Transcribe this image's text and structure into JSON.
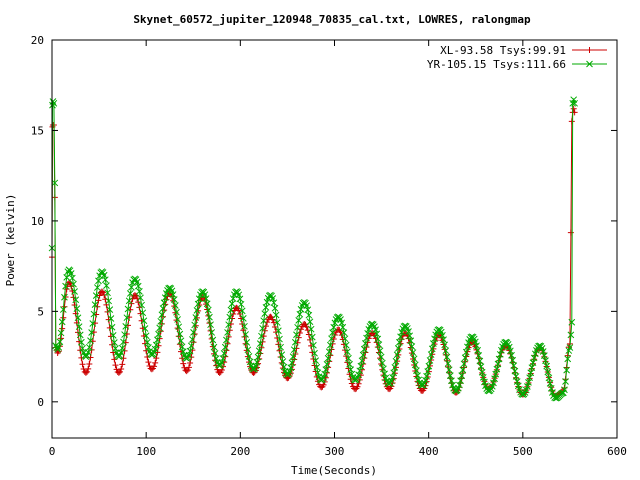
{
  "chart_data": {
    "type": "line",
    "title": "Skynet_60572_jupiter_120948_70835_cal.txt, LOWRES, ralongmap",
    "xlabel": "Time(Seconds)",
    "ylabel": "Power (kelvin)",
    "xlim": [
      0,
      600
    ],
    "ylim": [
      -2,
      20
    ],
    "xticks": [
      0,
      100,
      200,
      300,
      400,
      500,
      600
    ],
    "yticks": [
      0,
      5,
      10,
      15,
      20
    ],
    "grid": false,
    "legend_position": "top-right",
    "series": [
      {
        "name": "XL-93.58 Tsys:99.91",
        "color": "#cc0000",
        "marker": "plus",
        "points": [
          [
            0,
            8
          ],
          [
            0.5,
            15.2
          ],
          [
            1,
            15.3
          ],
          [
            2,
            15.3
          ],
          [
            3,
            11.3
          ],
          [
            4,
            3.0
          ],
          [
            6,
            2.7
          ],
          [
            18,
            6.6
          ],
          [
            36,
            1.6
          ],
          [
            53,
            6.1
          ],
          [
            71,
            1.6
          ],
          [
            88,
            5.9
          ],
          [
            106,
            1.8
          ],
          [
            125,
            6.0
          ],
          [
            143,
            1.7
          ],
          [
            160,
            5.8
          ],
          [
            178,
            1.6
          ],
          [
            196,
            5.2
          ],
          [
            214,
            1.6
          ],
          [
            232,
            4.7
          ],
          [
            250,
            1.3
          ],
          [
            268,
            4.3
          ],
          [
            286,
            0.8
          ],
          [
            304,
            4.0
          ],
          [
            322,
            0.7
          ],
          [
            340,
            3.8
          ],
          [
            358,
            0.7
          ],
          [
            375,
            3.8
          ],
          [
            393,
            0.6
          ],
          [
            411,
            3.7
          ],
          [
            429,
            0.5
          ],
          [
            446,
            3.3
          ],
          [
            464,
            0.7
          ],
          [
            482,
            3.1
          ],
          [
            500,
            0.4
          ],
          [
            518,
            3.0
          ],
          [
            535,
            0.3
          ],
          [
            543,
            0.6
          ],
          [
            550,
            3.2
          ],
          [
            552,
            15.5
          ],
          [
            553,
            16.0
          ],
          [
            554,
            16.2
          ],
          [
            555,
            16.0
          ]
        ]
      },
      {
        "name": "YR-105.15 Tsys:111.66",
        "color": "#00aa00",
        "marker": "cross",
        "points": [
          [
            0,
            8.5
          ],
          [
            0.5,
            16.4
          ],
          [
            1,
            16.6
          ],
          [
            2,
            16.5
          ],
          [
            3,
            12.1
          ],
          [
            4,
            3.1
          ],
          [
            6,
            2.9
          ],
          [
            18,
            7.3
          ],
          [
            36,
            2.5
          ],
          [
            53,
            7.2
          ],
          [
            71,
            2.5
          ],
          [
            88,
            6.8
          ],
          [
            106,
            2.6
          ],
          [
            125,
            6.3
          ],
          [
            143,
            2.4
          ],
          [
            160,
            6.1
          ],
          [
            178,
            2.0
          ],
          [
            196,
            6.1
          ],
          [
            214,
            1.8
          ],
          [
            232,
            5.9
          ],
          [
            250,
            1.5
          ],
          [
            268,
            5.5
          ],
          [
            286,
            1.2
          ],
          [
            304,
            4.7
          ],
          [
            322,
            1.2
          ],
          [
            340,
            4.3
          ],
          [
            358,
            1.0
          ],
          [
            375,
            4.2
          ],
          [
            393,
            0.9
          ],
          [
            411,
            4.0
          ],
          [
            429,
            0.6
          ],
          [
            446,
            3.6
          ],
          [
            464,
            0.6
          ],
          [
            482,
            3.3
          ],
          [
            500,
            0.4
          ],
          [
            518,
            3.1
          ],
          [
            535,
            0.2
          ],
          [
            543,
            0.5
          ],
          [
            550,
            3.0
          ],
          [
            552,
            4.4
          ],
          [
            553,
            16.5
          ],
          [
            554,
            16.7
          ],
          [
            555,
            16.5
          ]
        ]
      }
    ]
  }
}
